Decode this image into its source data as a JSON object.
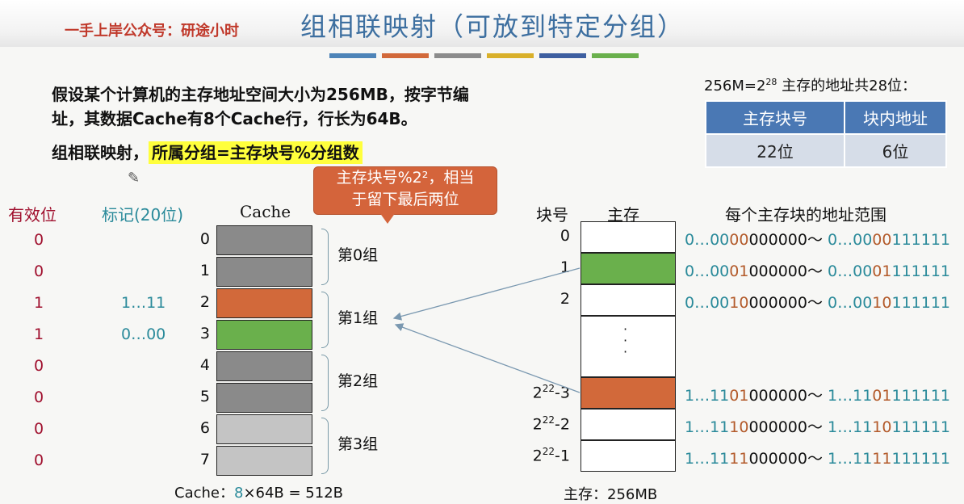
{
  "header": {
    "brand": "一手上岸公众号：研途小时",
    "title": "组相联映射（可放到特定分组）",
    "color_bar": [
      "#4e84b8",
      "#d2693a",
      "#8c8c8c",
      "#d9b02a",
      "#3e5fa0",
      "#6ab04c"
    ]
  },
  "intro": {
    "line1": "假设某个计算机的主存地址空间大小为256MB，按字节编",
    "line2": "址，其数据Cache有8个Cache行，行长为64B。",
    "mapping_prefix": "组相联映射，",
    "mapping_formula": "所属分组=主存块号%分组数"
  },
  "callout": {
    "line1": "主存块号%2²，相当",
    "line2": "于留下最后两位"
  },
  "address": {
    "title_prefix": "256M=2",
    "title_exp": "28",
    "title_suffix": " 主存的地址共28位：",
    "col1_header": "主存块号",
    "col2_header": "块内地址",
    "col1_value": "22位",
    "col2_value": "6位"
  },
  "cache_headers": {
    "valid": "有效位",
    "tag": "标记(20位)",
    "cache": "Cache"
  },
  "cache_rows": [
    {
      "num": "0",
      "valid": "0",
      "tag": "",
      "color": "#8a8a8a"
    },
    {
      "num": "1",
      "valid": "0",
      "tag": "",
      "color": "#8a8a8a"
    },
    {
      "num": "2",
      "valid": "1",
      "tag": "1…11",
      "color": "#d2693a"
    },
    {
      "num": "3",
      "valid": "1",
      "tag": "0…00",
      "color": "#6ab04c"
    },
    {
      "num": "4",
      "valid": "0",
      "tag": "",
      "color": "#8a8a8a"
    },
    {
      "num": "5",
      "valid": "0",
      "tag": "",
      "color": "#8a8a8a"
    },
    {
      "num": "6",
      "valid": "0",
      "tag": "",
      "color": "#c4c4c4"
    },
    {
      "num": "7",
      "valid": "0",
      "tag": "",
      "color": "#c4c4c4"
    }
  ],
  "groups": [
    "第0组",
    "第1组",
    "第2组",
    "第3组"
  ],
  "memory_headers": {
    "block_num": "块号",
    "memory": "主存",
    "range": "每个主存块的地址范围"
  },
  "memory_rows": [
    {
      "num": "0",
      "color": "#ffffff",
      "range": [
        [
          "0…00",
          "t"
        ],
        [
          "00",
          "o"
        ],
        [
          "000000～ ",
          "k"
        ],
        [
          "0…00",
          "t"
        ],
        [
          "00",
          "o"
        ],
        [
          "111111",
          "t"
        ]
      ]
    },
    {
      "num": "1",
      "color": "#6ab04c",
      "range": [
        [
          "0…00",
          "t"
        ],
        [
          "01",
          "o"
        ],
        [
          "000000～ ",
          "k"
        ],
        [
          "0…00",
          "t"
        ],
        [
          "01",
          "o"
        ],
        [
          "111111",
          "t"
        ]
      ]
    },
    {
      "num": "2",
      "color": "#ffffff",
      "range": [
        [
          "0…00",
          "t"
        ],
        [
          "10",
          "o"
        ],
        [
          "000000～ ",
          "k"
        ],
        [
          "0…00",
          "t"
        ],
        [
          "10",
          "o"
        ],
        [
          "111111",
          "t"
        ]
      ]
    },
    {
      "num": "",
      "color": "#ffffff",
      "dots": "·\n·\n·",
      "range": []
    },
    {
      "num": "2",
      "exp": "22",
      "suffix": "-3",
      "color": "#d2693a",
      "range": [
        [
          "1…11",
          "t"
        ],
        [
          "01",
          "o"
        ],
        [
          "000000～ ",
          "k"
        ],
        [
          "1…11",
          "t"
        ],
        [
          "01",
          "o"
        ],
        [
          "111111",
          "t"
        ]
      ]
    },
    {
      "num": "2",
      "exp": "22",
      "suffix": "-2",
      "color": "#ffffff",
      "range": [
        [
          "1…11",
          "t"
        ],
        [
          "10",
          "o"
        ],
        [
          "000000～ ",
          "k"
        ],
        [
          "1…11",
          "t"
        ],
        [
          "10",
          "o"
        ],
        [
          "111111",
          "t"
        ]
      ]
    },
    {
      "num": "2",
      "exp": "22",
      "suffix": "-1",
      "color": "#ffffff",
      "range": [
        [
          "1…11",
          "t"
        ],
        [
          "11",
          "o"
        ],
        [
          "000000～ ",
          "k"
        ],
        [
          "1…11",
          "t"
        ],
        [
          "11",
          "o"
        ],
        [
          "111111",
          "t"
        ]
      ]
    }
  ],
  "footer": {
    "cache_prefix": "Cache：",
    "cache_count": "8",
    "cache_rest": "×64B = 512B",
    "memory": "主存：256MB"
  }
}
